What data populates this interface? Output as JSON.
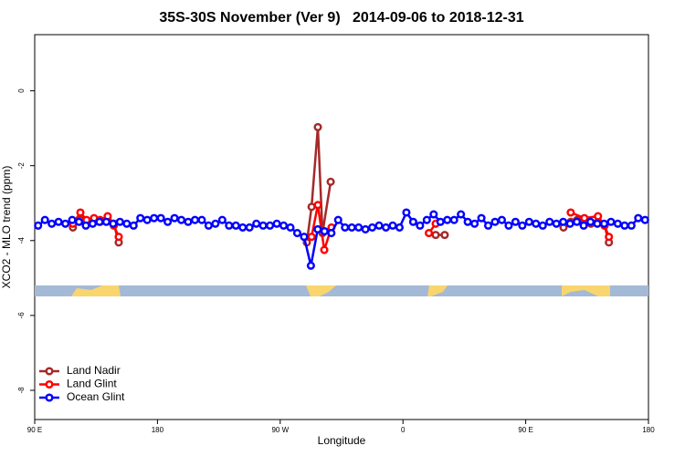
{
  "chart_data": {
    "type": "line",
    "title": "35S-30S November (Ver 9)   2014-09-06 to 2018-12-31",
    "xlabel": "Longitude",
    "ylabel": "XCO2 - MLO trend (ppm)",
    "xlim": [
      90,
      540
    ],
    "ylim": [
      -8.78,
      1.5
    ],
    "xticks": [
      {
        "value": 90,
        "label": "90 E"
      },
      {
        "value": 180,
        "label": "180"
      },
      {
        "value": 270,
        "label": "90 W"
      },
      {
        "value": 360,
        "label": "0"
      },
      {
        "value": 450,
        "label": "90 E"
      },
      {
        "value": 540,
        "label": "180"
      }
    ],
    "yticks": [
      -8,
      -6,
      -4,
      -2,
      0
    ],
    "legend": "bottomleft",
    "series": [
      {
        "name": "Land Nadir",
        "color": "#a52a2a",
        "x": [
          118,
          123.5,
          128,
          133.5,
          138,
          143.5,
          148,
          151.6,
          null,
          289.5,
          293,
          297.6,
          301,
          307,
          null,
          384,
          390.6,
          null,
          477.7,
          483,
          487.7,
          493,
          497.8,
          503,
          507.8,
          511
        ],
        "values": [
          -3.65,
          -3.45,
          -3.5,
          -3.45,
          -3.5,
          -3.45,
          -3.55,
          -4.05,
          null,
          -4.05,
          -3.1,
          -0.97,
          -3.8,
          -2.43,
          null,
          -3.85,
          -3.85,
          null,
          -3.65,
          -3.5,
          -3.45,
          -3.45,
          -3.55,
          -3.5,
          -3.6,
          -4.05
        ]
      },
      {
        "name": "Land Glint",
        "color": "#ff0000",
        "x": [
          118,
          123.5,
          128,
          133.5,
          138,
          143.5,
          148,
          151.6,
          null,
          293,
          297.6,
          302.3,
          307.6,
          null,
          379,
          384,
          null,
          483,
          493,
          503,
          507.8,
          511
        ],
        "values": [
          -3.55,
          -3.25,
          -3.45,
          -3.4,
          -3.45,
          -3.35,
          -3.6,
          -3.9,
          null,
          -3.9,
          -3.05,
          -4.25,
          -3.65,
          null,
          -3.8,
          -3.55,
          null,
          -3.25,
          -3.4,
          -3.35,
          -3.6,
          -3.9
        ]
      },
      {
        "name": "Ocean Glint",
        "color": "#0000ff",
        "x": [
          92.5,
          97.5,
          102.5,
          107.5,
          112.5,
          117.5,
          122.5,
          127.5,
          132.5,
          137.5,
          142.5,
          147.5,
          152.5,
          157.5,
          162.5,
          167.5,
          172.5,
          177.5,
          182.5,
          187.5,
          192.5,
          197.5,
          202.5,
          207.5,
          212.5,
          217.5,
          222.5,
          227.5,
          232.5,
          237.5,
          242.5,
          247.5,
          252.5,
          257.5,
          262.5,
          267.5,
          272.5,
          277.5,
          282.5,
          287.5,
          292.5,
          297.5,
          302.5,
          307.5,
          312.5,
          317.5,
          322.5,
          327.5,
          332.5,
          337.5,
          342.5,
          347.5,
          352.5,
          357.5,
          362.5,
          367.5,
          372.5,
          377.5,
          382.5,
          387.5,
          392.5,
          397.5,
          402.5,
          407.5,
          412.5,
          417.5,
          422.5,
          427.5,
          432.5,
          437.5,
          442.5,
          447.5,
          452.5,
          457.5,
          462.5,
          467.5,
          472.5,
          477.5,
          482.5,
          487.5,
          492.5,
          497.5,
          502.5,
          507.5,
          512.5,
          517.5,
          522.5,
          527.5,
          532.5,
          537.5
        ],
        "values": [
          -3.6,
          -3.45,
          -3.55,
          -3.5,
          -3.55,
          -3.45,
          -3.5,
          -3.6,
          -3.55,
          -3.5,
          -3.5,
          -3.55,
          -3.5,
          -3.55,
          -3.6,
          -3.4,
          -3.45,
          -3.4,
          -3.4,
          -3.5,
          -3.4,
          -3.45,
          -3.5,
          -3.45,
          -3.45,
          -3.6,
          -3.55,
          -3.45,
          -3.6,
          -3.6,
          -3.65,
          -3.65,
          -3.55,
          -3.6,
          -3.6,
          -3.55,
          -3.6,
          -3.65,
          -3.8,
          -3.9,
          -4.67,
          -3.7,
          -3.75,
          -3.8,
          -3.45,
          -3.65,
          -3.65,
          -3.65,
          -3.7,
          -3.65,
          -3.6,
          -3.65,
          -3.6,
          -3.65,
          -3.25,
          -3.5,
          -3.6,
          -3.45,
          -3.3,
          -3.5,
          -3.45,
          -3.45,
          -3.3,
          -3.5,
          -3.55,
          -3.4,
          -3.6,
          -3.5,
          -3.45,
          -3.6,
          -3.5,
          -3.6,
          -3.5,
          -3.55,
          -3.6,
          -3.5,
          -3.55,
          -3.5,
          -3.55,
          -3.5,
          -3.6,
          -3.5,
          -3.55,
          -3.55,
          -3.5,
          -3.55,
          -3.6,
          -3.6,
          -3.4,
          -3.45
        ]
      }
    ]
  }
}
